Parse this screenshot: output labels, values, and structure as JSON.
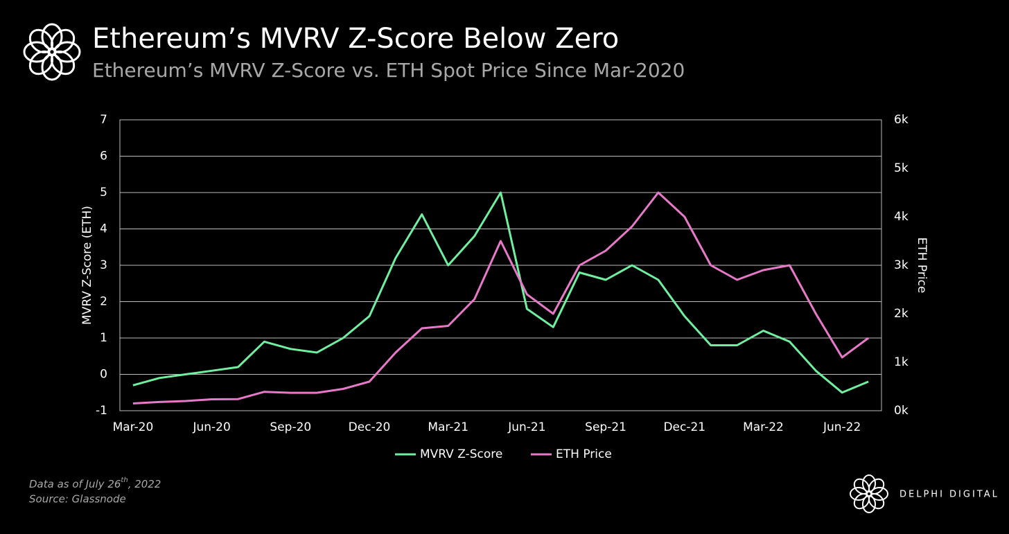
{
  "chart_data": {
    "type": "line",
    "title": "Ethereum’s MVRV Z-Score Below Zero",
    "subtitle": "Ethereum’s MVRV Z-Score vs. ETH Spot Price Since Mar-2020",
    "y_label": "MVRV Z-Score (ETH)",
    "y2_label": "ETH Price",
    "categories": [
      "Mar-20",
      null,
      null,
      "Jun-20",
      null,
      null,
      "Sep-20",
      null,
      null,
      "Dec-20",
      null,
      null,
      "Mar-21",
      null,
      null,
      "Jun-21",
      null,
      null,
      "Sep-21",
      null,
      null,
      "Dec-21",
      null,
      null,
      "Mar-22",
      null,
      null,
      "Jun-22",
      null
    ],
    "series": [
      {
        "name": "MVRV Z-Score",
        "color": "#6ff0a0",
        "axis": "y",
        "values": [
          -0.3,
          -0.1,
          0.0,
          0.1,
          0.2,
          0.9,
          0.7,
          0.6,
          1.0,
          1.6,
          3.2,
          4.4,
          3.0,
          3.8,
          5.0,
          1.8,
          1.3,
          2.8,
          2.6,
          3.0,
          2.6,
          1.6,
          0.8,
          0.8,
          1.2,
          0.9,
          0.1,
          -0.5,
          -0.2
        ]
      },
      {
        "name": "ETH Price",
        "color": "#e878c8",
        "axis": "y2",
        "values": [
          150,
          180,
          200,
          235,
          240,
          390,
          370,
          370,
          450,
          600,
          1200,
          1700,
          1750,
          2300,
          3500,
          2400,
          2000,
          3000,
          3300,
          3800,
          4500,
          4000,
          3000,
          2700,
          2900,
          3000,
          2000,
          1100,
          1500
        ]
      }
    ],
    "ylim": [
      -1,
      7
    ],
    "yticks": [
      -1,
      0,
      1,
      2,
      3,
      4,
      5,
      6,
      7
    ],
    "y2lim": [
      0,
      6000
    ],
    "y2ticks": [
      {
        "value": 0,
        "label": "0k"
      },
      {
        "value": 1000,
        "label": "1k"
      },
      {
        "value": 2000,
        "label": "2k"
      },
      {
        "value": 3000,
        "label": "3k"
      },
      {
        "value": 4000,
        "label": "4k"
      },
      {
        "value": 5000,
        "label": "5k"
      },
      {
        "value": 6000,
        "label": "6k"
      }
    ],
    "grid": true,
    "legend": "bottom",
    "note": {
      "text": "Data as of July 26",
      "sup": "th",
      "tail": ", 2022"
    },
    "source": "Source: Glassnode",
    "brand": "DELPHI DIGITAL"
  }
}
